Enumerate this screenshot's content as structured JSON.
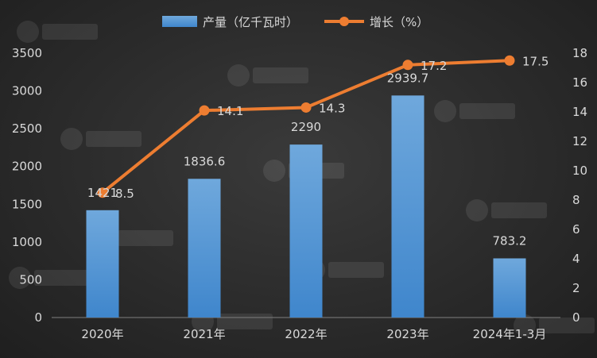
{
  "chart_data": {
    "type": "bar",
    "categories": [
      "2020年",
      "2021年",
      "2022年",
      "2023年",
      "2024年1-3月"
    ],
    "series": [
      {
        "name": "产量（亿千瓦时）",
        "type": "bar",
        "axis": "left",
        "values": [
          1421,
          1836.6,
          2290,
          2939.7,
          783.2
        ],
        "labels": [
          "1421",
          "1836.6",
          "2290",
          "2939.7",
          "783.2"
        ]
      },
      {
        "name": "增长（%）",
        "type": "line",
        "axis": "right",
        "values": [
          8.5,
          14.1,
          14.3,
          17.2,
          17.5
        ],
        "labels": [
          "8.5",
          "14.1",
          "14.3",
          "17.2",
          "17.5"
        ]
      }
    ],
    "y_left": {
      "min": 0,
      "max": 3500,
      "ticks": [
        0,
        500,
        1000,
        1500,
        2000,
        2500,
        3000,
        3500
      ]
    },
    "y_right": {
      "min": 0,
      "max": 18,
      "ticks": [
        0,
        2,
        4,
        6,
        8,
        10,
        12,
        14,
        16,
        18
      ]
    },
    "legend_position": "top-center",
    "grid": false
  },
  "colors": {
    "bar_top": "#6fa8dc",
    "bar_bottom": "#3f86cc",
    "line": "#ed7d31",
    "text": "#d9d9d9"
  }
}
